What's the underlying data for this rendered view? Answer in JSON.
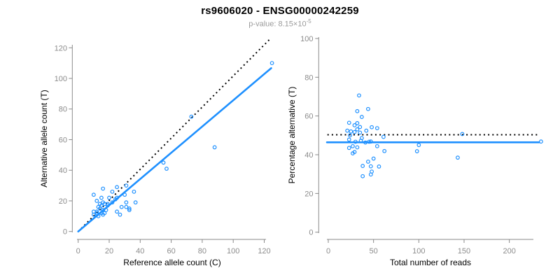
{
  "title": "rs9606020 - ENSG00000242259",
  "subtitle": {
    "text": "p-value: 8.15×10",
    "exponent": "-5"
  },
  "colors": {
    "accent": "#1E90FF",
    "dotted": "#000000",
    "axis": "#8a8a8a",
    "ticklab": "#8c8c8c",
    "label": "#000000",
    "subtitle": "#9b9b9b"
  },
  "chart_data": [
    {
      "type": "scatter",
      "panel": "left",
      "xlabel": "Reference allele count (C)",
      "ylabel": "Alternative allele count (T)",
      "xlim": [
        0,
        126
      ],
      "ylim": [
        0,
        126
      ],
      "xticks": [
        0,
        20,
        40,
        60,
        80,
        100,
        120
      ],
      "yticks": [
        0,
        20,
        40,
        60,
        80,
        100,
        120
      ],
      "grid": false,
      "points": [
        [
          125,
          110
        ],
        [
          73,
          75
        ],
        [
          88,
          55
        ],
        [
          55,
          45
        ],
        [
          57,
          41
        ],
        [
          10,
          24
        ],
        [
          12,
          20
        ],
        [
          16,
          28
        ],
        [
          15,
          22
        ],
        [
          10,
          13
        ],
        [
          13,
          16
        ],
        [
          14,
          18
        ],
        [
          16,
          19
        ],
        [
          22,
          26
        ],
        [
          25,
          29
        ],
        [
          12,
          13
        ],
        [
          14,
          15
        ],
        [
          15,
          17
        ],
        [
          20,
          22
        ],
        [
          10,
          11
        ],
        [
          12,
          12
        ],
        [
          17,
          18
        ],
        [
          31,
          30
        ],
        [
          12,
          11
        ],
        [
          25,
          22
        ],
        [
          24,
          21
        ],
        [
          22,
          19
        ],
        [
          19,
          18
        ],
        [
          19,
          17
        ],
        [
          16,
          14
        ],
        [
          15,
          12
        ],
        [
          13,
          10
        ],
        [
          18,
          14
        ],
        [
          30,
          24
        ],
        [
          36,
          26
        ],
        [
          16,
          11
        ],
        [
          17,
          12
        ],
        [
          31,
          19
        ],
        [
          28,
          16
        ],
        [
          25,
          13
        ],
        [
          31,
          16
        ],
        [
          37,
          19
        ],
        [
          33,
          15
        ],
        [
          33,
          14
        ],
        [
          27,
          11
        ]
      ],
      "lines": [
        {
          "name": "identity-line",
          "style": "dotted",
          "x1": 2,
          "y1": 2,
          "x2": 124,
          "y2": 126
        },
        {
          "name": "fit-line",
          "style": "solid",
          "x1": 0,
          "y1": 0,
          "x2": 124.5,
          "y2": 106.7
        }
      ]
    },
    {
      "type": "scatter",
      "panel": "right",
      "xlabel": "Total number of reads",
      "ylabel": "Percentage alternative (T)",
      "xlim": [
        0,
        237
      ],
      "ylim": [
        0,
        100
      ],
      "xticks": [
        0,
        50,
        100,
        150,
        200
      ],
      "yticks": [
        0,
        20,
        40,
        60,
        80,
        100
      ],
      "grid": false,
      "points": [
        [
          235,
          46.8
        ],
        [
          148,
          50.7
        ],
        [
          143,
          38.5
        ],
        [
          100,
          45.0
        ],
        [
          98,
          41.8
        ],
        [
          34,
          70.6
        ],
        [
          32,
          62.5
        ],
        [
          44,
          63.6
        ],
        [
          37,
          59.5
        ],
        [
          23,
          56.5
        ],
        [
          29,
          55.2
        ],
        [
          32,
          56.3
        ],
        [
          35,
          54.3
        ],
        [
          48,
          54.2
        ],
        [
          54,
          53.7
        ],
        [
          25,
          52.0
        ],
        [
          29,
          51.7
        ],
        [
          32,
          53.1
        ],
        [
          42,
          52.4
        ],
        [
          21,
          52.4
        ],
        [
          24,
          50.0
        ],
        [
          35,
          51.4
        ],
        [
          61,
          49.2
        ],
        [
          23,
          47.8
        ],
        [
          47,
          46.8
        ],
        [
          45,
          46.7
        ],
        [
          41,
          46.3
        ],
        [
          37,
          48.6
        ],
        [
          36,
          47.2
        ],
        [
          30,
          46.7
        ],
        [
          27,
          44.4
        ],
        [
          23,
          43.5
        ],
        [
          32,
          43.8
        ],
        [
          54,
          44.4
        ],
        [
          62,
          41.9
        ],
        [
          27,
          40.7
        ],
        [
          29,
          41.4
        ],
        [
          50,
          38.0
        ],
        [
          44,
          36.4
        ],
        [
          38,
          34.2
        ],
        [
          47,
          34.0
        ],
        [
          56,
          33.9
        ],
        [
          48,
          31.3
        ],
        [
          47,
          29.8
        ],
        [
          38,
          28.9
        ]
      ],
      "lines": [
        {
          "name": "expected-50pct-line",
          "style": "dotted",
          "x1": -1,
          "y1": 50.3,
          "x2": 231,
          "y2": 50.3
        },
        {
          "name": "mean-line",
          "style": "solid",
          "x1": -1.5,
          "y1": 46.4,
          "x2": 233,
          "y2": 46.4
        }
      ]
    }
  ]
}
